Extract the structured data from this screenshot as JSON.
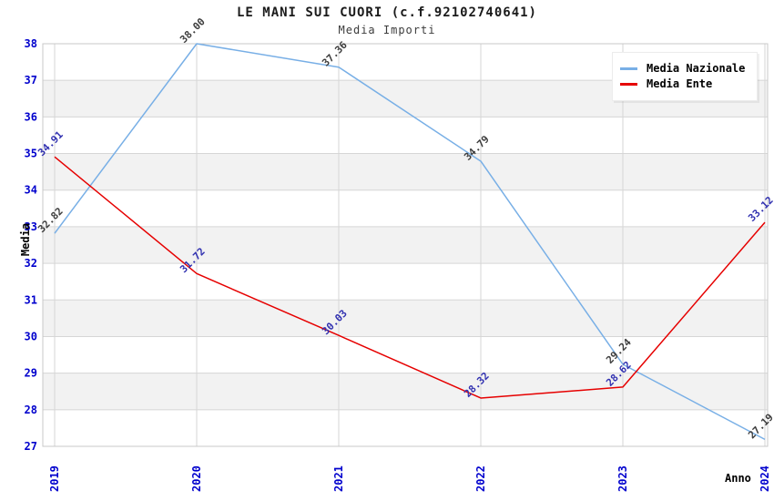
{
  "chart_data": {
    "type": "line",
    "title": "LE MANI SUI CUORI (c.f.92102740641)",
    "subtitle": "Media Importi",
    "xlabel": "Anno",
    "ylabel": "Media",
    "categories": [
      "2019",
      "2020",
      "2021",
      "2022",
      "2023",
      "2024"
    ],
    "ylim": [
      27,
      38
    ],
    "ytick_step": 1,
    "grid": true,
    "band_fill_alternating": true,
    "legend_position": "top-right",
    "series": [
      {
        "name": "Media Nazionale",
        "color": "#78afe6",
        "label_color": "#3c3c3c",
        "values": [
          32.82,
          38.0,
          37.36,
          34.79,
          29.24,
          27.19
        ]
      },
      {
        "name": "Media Ente",
        "color": "#e60000",
        "label_color": "#3030b0",
        "values": [
          34.91,
          31.72,
          30.03,
          28.32,
          28.62,
          33.12
        ]
      }
    ],
    "colors": {
      "tick": "#0000cd",
      "axis_label": "#000000",
      "grid": "#d6d6d6",
      "band": "#f2f2f2",
      "border": "#c8c8c8",
      "plot_background": "#ffffff"
    }
  }
}
